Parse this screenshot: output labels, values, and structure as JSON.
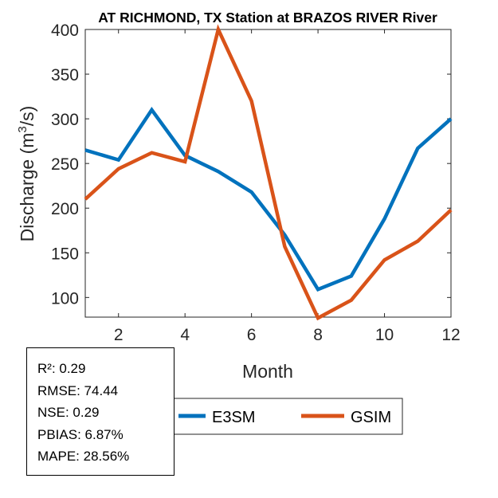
{
  "chart_data": {
    "type": "line",
    "title": "AT RICHMOND, TX  Station at  BRAZOS RIVER  River",
    "xlabel": "Month",
    "ylabel": "Discharge (m³/s)",
    "ylabel_base": "Discharge (m",
    "ylabel_sup": "3",
    "ylabel_tail": "/s)",
    "xlim": [
      1,
      12
    ],
    "ylim": [
      78,
      400
    ],
    "xticks": [
      2,
      4,
      6,
      8,
      10,
      12
    ],
    "yticks": [
      100,
      150,
      200,
      250,
      300,
      350,
      400
    ],
    "x": [
      1,
      2,
      3,
      4,
      5,
      6,
      7,
      8,
      9,
      10,
      11,
      12
    ],
    "series": [
      {
        "name": "E3SM",
        "color": "#0072BD",
        "values": [
          265,
          254,
          310,
          259,
          241,
          218,
          170,
          109,
          124,
          188,
          267,
          300
        ]
      },
      {
        "name": "GSIM",
        "color": "#D95319",
        "values": [
          210,
          244,
          262,
          252,
          400,
          320,
          157,
          77,
          97,
          142,
          163,
          198
        ]
      }
    ],
    "legend_placement": "bottom-center"
  },
  "stats": {
    "r2": "R²: 0.29",
    "rmse": "RMSE: 74.44",
    "nse": "NSE: 0.29",
    "pbias": "PBIAS: 6.87%",
    "mape": "MAPE: 28.56%"
  }
}
